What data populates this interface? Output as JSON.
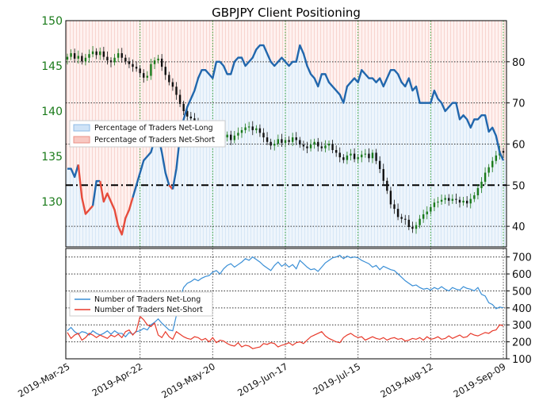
{
  "chart_data": [
    {
      "type": "line",
      "title": "GBPJPY Client Positioning",
      "price_axis": {
        "side": "left",
        "ylim": [
          125,
          150
        ],
        "ticks": [
          130,
          135,
          140,
          145,
          150
        ],
        "color": "#1a7a1a"
      },
      "percent_axis": {
        "side": "right",
        "ylim": [
          35,
          90
        ],
        "ticks": [
          40,
          50,
          60,
          70,
          80
        ]
      },
      "x_labels": [
        "2019-Mar-25",
        "2019-Apr-22",
        "2019-May-20",
        "2019-Jun-17",
        "2019-Jul-15",
        "2019-Aug-12",
        "2019-Sep-09"
      ],
      "reference_line": 50,
      "grid": true,
      "legend": {
        "position": "left",
        "entries": [
          {
            "label": "Percentage of Traders Net-Long",
            "color": "#1f77b4"
          },
          {
            "label": "Percentage of Traders Net-Short",
            "color": "#e74c3c"
          }
        ]
      },
      "series": [
        {
          "name": "Percentage of Traders Net-Long",
          "values": [
            54,
            54,
            52,
            55,
            47,
            43,
            44,
            45,
            51,
            51,
            46,
            48,
            46,
            44,
            40,
            38,
            42,
            44,
            47,
            50,
            53,
            56,
            57,
            58,
            61,
            62,
            58,
            53,
            50,
            49,
            54,
            62,
            66,
            69,
            71,
            73,
            76,
            78,
            78,
            77,
            76,
            80,
            80,
            79,
            77,
            77,
            80,
            81,
            81,
            79,
            80,
            81,
            83,
            84,
            84,
            82,
            80,
            79,
            80,
            81,
            80,
            79,
            80,
            80,
            84,
            82,
            79,
            77,
            76,
            74,
            77,
            77,
            75,
            74,
            73,
            72,
            70,
            74,
            75,
            76,
            75,
            78,
            77,
            76,
            76,
            75,
            76,
            74,
            76,
            78,
            78,
            77,
            75,
            74,
            76,
            73,
            74,
            70,
            70,
            70,
            70,
            73,
            71,
            70,
            68,
            69,
            70,
            70,
            66,
            67,
            66,
            64,
            66,
            66,
            67,
            67,
            63,
            64,
            62,
            58,
            56
          ]
        },
        {
          "name": "Price",
          "values": [
            146,
            146.4,
            145.8,
            146.1,
            145.5,
            145.9,
            146.3,
            146.6,
            146.2,
            146.6,
            146,
            145.6,
            145.4,
            145.9,
            146.4,
            145.9,
            145.5,
            145.2,
            144.9,
            144.7,
            144.2,
            143.7,
            143.9,
            145.2,
            145.6,
            145.8,
            144.9,
            144,
            143.2,
            142.7,
            141.8,
            140.8,
            140,
            139.4,
            139.2,
            138.9,
            138.4,
            137.9,
            138.2,
            137.5,
            137.3,
            137.6,
            137.9,
            137.1,
            137.4,
            136.8,
            137.3,
            137.6,
            137.9,
            138.2,
            138.3,
            137.9,
            138.1,
            137.6,
            137.1,
            136.6,
            136.2,
            136.4,
            136.9,
            136.5,
            136.8,
            136.6,
            137.1,
            136.8,
            136.3,
            136.1,
            135.9,
            136.3,
            136.6,
            136.1,
            135.9,
            136.2,
            136.4,
            135.7,
            135.4,
            134.9,
            134.6,
            135.1,
            135.3,
            134.7,
            134.9,
            135.2,
            135.3,
            134.8,
            135.4,
            134.5,
            133.6,
            132.3,
            131.2,
            129.7,
            129.2,
            128.3,
            128.1,
            128,
            127.2,
            127,
            127.4,
            128.1,
            128.6,
            128.9,
            129.4,
            129.9,
            130,
            130.2,
            130.4,
            130.1,
            130.3,
            130.2,
            129.9,
            130.1,
            129.8,
            130.3,
            130.7,
            131.5,
            132.2,
            133.2,
            133.8,
            134.5,
            135.1,
            135.6,
            135.4
          ]
        }
      ]
    },
    {
      "type": "line",
      "ylim": [
        100,
        750
      ],
      "yticks": [
        100,
        200,
        300,
        400,
        500,
        600,
        700
      ],
      "grid": true,
      "legend": {
        "position": "left",
        "entries": [
          {
            "label": "Number of Traders Net-Long",
            "color": "#3a8fd6"
          },
          {
            "label": "Number of Traders Net-Short",
            "color": "#e83a2b"
          }
        ]
      },
      "series": [
        {
          "name": "Number of Traders Net-Long",
          "values": [
            265,
            285,
            260,
            245,
            260,
            255,
            240,
            265,
            250,
            240,
            250,
            265,
            245,
            265,
            250,
            250,
            230,
            255,
            245,
            260,
            265,
            280,
            270,
            300,
            315,
            335,
            310,
            290,
            270,
            265,
            355,
            460,
            520,
            545,
            555,
            570,
            560,
            575,
            585,
            590,
            610,
            620,
            600,
            630,
            650,
            660,
            640,
            655,
            670,
            690,
            680,
            700,
            685,
            670,
            650,
            635,
            620,
            650,
            670,
            645,
            660,
            640,
            655,
            630,
            680,
            660,
            640,
            625,
            630,
            615,
            640,
            665,
            680,
            695,
            700,
            710,
            690,
            705,
            695,
            700,
            695,
            680,
            670,
            660,
            640,
            650,
            625,
            645,
            635,
            625,
            620,
            600,
            580,
            560,
            545,
            530,
            535,
            520,
            510,
            515,
            505,
            520,
            510,
            525,
            510,
            500,
            520,
            510,
            505,
            525,
            515,
            510,
            500,
            520,
            480,
            470,
            430,
            420,
            395,
            405,
            400
          ]
        },
        {
          "name": "Number of Traders Net-Short",
          "values": [
            255,
            220,
            240,
            250,
            210,
            225,
            250,
            240,
            225,
            240,
            230,
            220,
            240,
            230,
            245,
            225,
            260,
            270,
            240,
            265,
            350,
            330,
            300,
            290,
            310,
            240,
            225,
            260,
            230,
            215,
            260,
            245,
            230,
            220,
            215,
            230,
            225,
            210,
            220,
            200,
            225,
            195,
            210,
            205,
            190,
            180,
            175,
            195,
            170,
            180,
            175,
            160,
            165,
            170,
            190,
            185,
            195,
            190,
            170,
            180,
            185,
            195,
            180,
            195,
            200,
            190,
            210,
            230,
            240,
            250,
            260,
            235,
            220,
            210,
            200,
            195,
            225,
            240,
            250,
            235,
            225,
            230,
            210,
            220,
            230,
            220,
            215,
            225,
            210,
            220,
            225,
            215,
            220,
            205,
            210,
            220,
            215,
            225,
            210,
            230,
            215,
            220,
            230,
            215,
            220,
            235,
            220,
            230,
            240,
            225,
            230,
            250,
            240,
            235,
            245,
            255,
            250,
            265,
            270,
            300,
            295
          ]
        }
      ]
    }
  ]
}
